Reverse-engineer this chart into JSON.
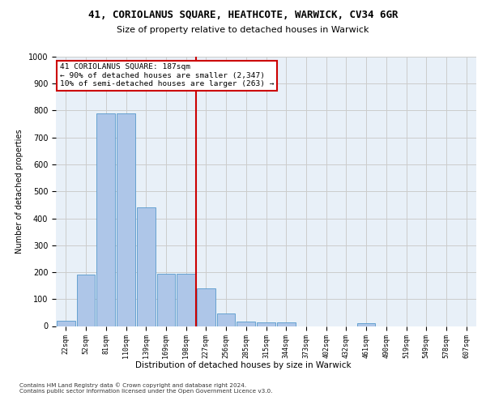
{
  "title1": "41, CORIOLANUS SQUARE, HEATHCOTE, WARWICK, CV34 6GR",
  "title2": "Size of property relative to detached houses in Warwick",
  "xlabel": "Distribution of detached houses by size in Warwick",
  "ylabel": "Number of detached properties",
  "bar_labels": [
    "22sqm",
    "52sqm",
    "81sqm",
    "110sqm",
    "139sqm",
    "169sqm",
    "198sqm",
    "227sqm",
    "256sqm",
    "285sqm",
    "315sqm",
    "344sqm",
    "373sqm",
    "402sqm",
    "432sqm",
    "461sqm",
    "490sqm",
    "519sqm",
    "549sqm",
    "578sqm",
    "607sqm"
  ],
  "bar_values": [
    20,
    190,
    790,
    790,
    440,
    195,
    195,
    140,
    48,
    18,
    13,
    13,
    0,
    0,
    0,
    10,
    0,
    0,
    0,
    0,
    0
  ],
  "bar_color": "#aec6e8",
  "bar_edge_color": "#5599cc",
  "vline_x": 6.5,
  "vline_color": "#cc0000",
  "annotation_text": "41 CORIOLANUS SQUARE: 187sqm\n← 90% of detached houses are smaller (2,347)\n10% of semi-detached houses are larger (263) →",
  "annotation_box_color": "#ffffff",
  "annotation_box_edge": "#cc0000",
  "ylim": [
    0,
    1000
  ],
  "yticks": [
    0,
    100,
    200,
    300,
    400,
    500,
    600,
    700,
    800,
    900,
    1000
  ],
  "footnote": "Contains HM Land Registry data © Crown copyright and database right 2024.\nContains public sector information licensed under the Open Government Licence v3.0.",
  "background_color": "#ffffff",
  "grid_color": "#cccccc",
  "axes_bg_color": "#e8f0f8"
}
